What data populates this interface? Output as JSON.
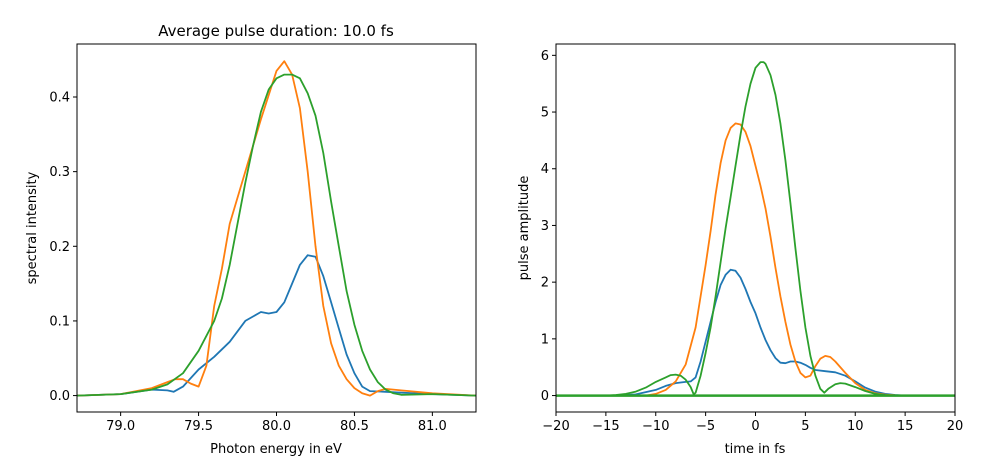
{
  "chart_data": [
    {
      "type": "line",
      "title": "Average pulse duration: 10.0  fs",
      "xlabel": "Photon energy in eV",
      "ylabel": "spectral intensity",
      "xlim": [
        78.72,
        81.28
      ],
      "ylim": [
        -0.022,
        0.471
      ],
      "xticks": [
        79.0,
        79.5,
        80.0,
        80.5,
        81.0
      ],
      "xtick_labels": [
        "79.0",
        "79.5",
        "80.0",
        "80.5",
        "81.0"
      ],
      "yticks": [
        0.0,
        0.1,
        0.2,
        0.3,
        0.4
      ],
      "ytick_labels": [
        "0.0",
        "0.1",
        "0.2",
        "0.3",
        "0.4"
      ],
      "grid": false,
      "series": [
        {
          "name": "series-1",
          "color": "#1f77b4",
          "x": [
            78.72,
            79.0,
            79.2,
            79.3,
            79.34,
            79.4,
            79.5,
            79.6,
            79.7,
            79.8,
            79.9,
            79.95,
            80.0,
            80.05,
            80.1,
            80.15,
            80.2,
            80.25,
            80.3,
            80.35,
            80.4,
            80.45,
            80.5,
            80.55,
            80.6,
            80.7,
            80.8,
            81.0,
            81.28
          ],
          "y": [
            0.0,
            0.002,
            0.008,
            0.007,
            0.005,
            0.012,
            0.035,
            0.052,
            0.072,
            0.1,
            0.112,
            0.11,
            0.112,
            0.125,
            0.15,
            0.175,
            0.188,
            0.186,
            0.16,
            0.125,
            0.09,
            0.055,
            0.03,
            0.012,
            0.006,
            0.005,
            0.004,
            0.002,
            0.0
          ]
        },
        {
          "name": "series-2",
          "color": "#ff7f0e",
          "x": [
            78.72,
            79.0,
            79.2,
            79.3,
            79.35,
            79.4,
            79.45,
            79.5,
            79.55,
            79.6,
            79.65,
            79.7,
            79.8,
            79.9,
            80.0,
            80.05,
            80.1,
            80.15,
            80.2,
            80.25,
            80.3,
            80.35,
            80.4,
            80.45,
            80.5,
            80.55,
            80.6,
            80.65,
            80.7,
            80.8,
            81.0,
            81.28
          ],
          "y": [
            0.0,
            0.002,
            0.01,
            0.018,
            0.022,
            0.022,
            0.016,
            0.012,
            0.04,
            0.12,
            0.17,
            0.23,
            0.3,
            0.37,
            0.435,
            0.448,
            0.43,
            0.385,
            0.3,
            0.2,
            0.12,
            0.07,
            0.04,
            0.022,
            0.01,
            0.003,
            0.0,
            0.006,
            0.009,
            0.007,
            0.003,
            0.0
          ]
        },
        {
          "name": "series-3",
          "color": "#2ca02c",
          "x": [
            78.72,
            79.0,
            79.2,
            79.3,
            79.4,
            79.5,
            79.6,
            79.65,
            79.7,
            79.8,
            79.85,
            79.9,
            79.95,
            80.0,
            80.05,
            80.1,
            80.15,
            80.2,
            80.25,
            80.3,
            80.35,
            80.4,
            80.45,
            80.5,
            80.55,
            80.6,
            80.65,
            80.7,
            80.75,
            80.8,
            81.0,
            81.28
          ],
          "y": [
            0.0,
            0.002,
            0.008,
            0.015,
            0.03,
            0.06,
            0.1,
            0.13,
            0.175,
            0.285,
            0.335,
            0.38,
            0.41,
            0.425,
            0.43,
            0.43,
            0.425,
            0.405,
            0.375,
            0.325,
            0.26,
            0.2,
            0.14,
            0.095,
            0.06,
            0.035,
            0.018,
            0.008,
            0.003,
            0.001,
            0.002,
            0.0
          ]
        }
      ]
    },
    {
      "type": "line",
      "title": "",
      "xlabel": "time in fs",
      "ylabel": "pulse amplitude",
      "xlim": [
        -20,
        20
      ],
      "ylim": [
        -0.29,
        6.2
      ],
      "xticks": [
        -20,
        -15,
        -10,
        -5,
        0,
        5,
        10,
        15,
        20
      ],
      "xtick_labels": [
        "−20",
        "−15",
        "−10",
        "−5",
        "0",
        "5",
        "10",
        "15",
        "20"
      ],
      "yticks": [
        0,
        1,
        2,
        3,
        4,
        5,
        6
      ],
      "ytick_labels": [
        "0",
        "1",
        "2",
        "3",
        "4",
        "5",
        "6"
      ],
      "grid": false,
      "series": [
        {
          "name": "series-1",
          "color": "#1f77b4",
          "x": [
            -20,
            -14,
            -12,
            -10,
            -9,
            -8,
            -7,
            -6.5,
            -6,
            -5.5,
            -5,
            -4.5,
            -4,
            -3.5,
            -3,
            -2.5,
            -2,
            -1.5,
            -1,
            -0.5,
            0,
            0.5,
            1,
            1.5,
            2,
            2.5,
            3,
            3.5,
            4,
            4.5,
            5,
            5.5,
            6,
            7,
            8,
            9,
            10,
            11,
            12,
            13,
            14,
            15,
            20
          ],
          "y": [
            0,
            0.0,
            0.02,
            0.1,
            0.17,
            0.22,
            0.24,
            0.25,
            0.32,
            0.6,
            0.95,
            1.3,
            1.65,
            1.95,
            2.13,
            2.22,
            2.2,
            2.08,
            1.88,
            1.65,
            1.45,
            1.2,
            0.98,
            0.8,
            0.66,
            0.58,
            0.57,
            0.6,
            0.6,
            0.58,
            0.54,
            0.49,
            0.45,
            0.43,
            0.41,
            0.35,
            0.25,
            0.14,
            0.07,
            0.03,
            0.01,
            0.0,
            0
          ]
        },
        {
          "name": "series-2",
          "color": "#ff7f0e",
          "x": [
            -20,
            -11,
            -10,
            -9,
            -8,
            -7,
            -6,
            -5,
            -4.5,
            -4,
            -3.5,
            -3,
            -2.5,
            -2,
            -1.5,
            -1,
            -0.5,
            0,
            0.5,
            1,
            1.5,
            2,
            2.5,
            3,
            3.5,
            4,
            4.5,
            5,
            5.5,
            6,
            6.5,
            7,
            7.5,
            8,
            9,
            10,
            11,
            12,
            13,
            14,
            15,
            20
          ],
          "y": [
            0,
            0.0,
            0.03,
            0.1,
            0.25,
            0.55,
            1.2,
            2.3,
            2.9,
            3.55,
            4.1,
            4.5,
            4.72,
            4.8,
            4.78,
            4.65,
            4.4,
            4.05,
            3.7,
            3.3,
            2.8,
            2.25,
            1.75,
            1.3,
            0.9,
            0.6,
            0.4,
            0.32,
            0.35,
            0.52,
            0.65,
            0.7,
            0.68,
            0.6,
            0.4,
            0.22,
            0.1,
            0.04,
            0.015,
            0.005,
            0.0,
            0
          ]
        },
        {
          "name": "series-3",
          "color": "#2ca02c",
          "x": [
            -20,
            -15,
            -14,
            -13,
            -12,
            -11,
            -10,
            -9,
            -8.5,
            -8,
            -7.5,
            -7,
            -6.5,
            -6.2,
            -6,
            -5.5,
            -5,
            -4.5,
            -4,
            -3.5,
            -3,
            -2.5,
            -2,
            -1.5,
            -1,
            -0.5,
            0,
            0.5,
            0.8,
            1,
            1.5,
            2,
            2.5,
            3,
            3.5,
            4,
            4.5,
            5,
            5.5,
            6,
            6.5,
            6.9,
            7.3,
            8,
            8.5,
            9,
            10,
            11,
            12,
            13,
            14,
            15,
            20
          ],
          "y": [
            0,
            0.0,
            0.01,
            0.03,
            0.07,
            0.14,
            0.24,
            0.32,
            0.36,
            0.37,
            0.35,
            0.28,
            0.15,
            0.02,
            0.05,
            0.35,
            0.75,
            1.2,
            1.75,
            2.35,
            2.95,
            3.5,
            4.05,
            4.6,
            5.1,
            5.5,
            5.78,
            5.88,
            5.88,
            5.85,
            5.65,
            5.3,
            4.8,
            4.15,
            3.4,
            2.6,
            1.85,
            1.2,
            0.7,
            0.35,
            0.12,
            0.05,
            0.12,
            0.2,
            0.22,
            0.21,
            0.15,
            0.08,
            0.03,
            0.01,
            0.0,
            0.0,
            0
          ]
        },
        {
          "name": "baseline",
          "color": "#2ca02c",
          "x": [
            -20,
            20
          ],
          "y": [
            0,
            0
          ]
        }
      ]
    }
  ]
}
